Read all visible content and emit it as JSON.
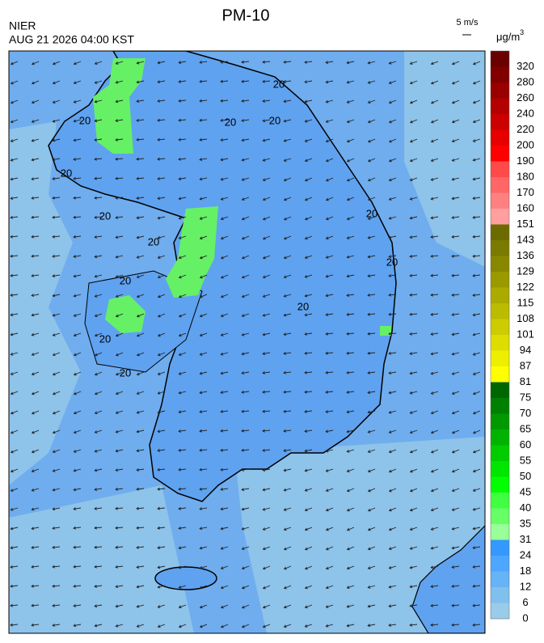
{
  "header": {
    "title": "PM-10",
    "agency": "NIER",
    "timestamp": "AUG 21 2026 04:00 KST"
  },
  "wind_scale": "5 m/s",
  "unit": {
    "base": "μg/m",
    "exponent": "3"
  },
  "colorbar": {
    "labels": [
      320,
      280,
      260,
      240,
      220,
      200,
      190,
      180,
      170,
      160,
      151,
      143,
      136,
      129,
      122,
      115,
      108,
      101,
      94,
      87,
      81,
      75,
      70,
      65,
      60,
      55,
      50,
      45,
      40,
      35,
      31,
      24,
      18,
      12,
      6,
      0
    ],
    "colors": [
      "#6b0000",
      "#800000",
      "#990000",
      "#b30000",
      "#cc0000",
      "#e60000",
      "#ff0000",
      "#ff4a4a",
      "#ff6666",
      "#ff8080",
      "#ff9f9f",
      "#6b6b00",
      "#7a7a00",
      "#888800",
      "#999900",
      "#aaaa00",
      "#bbbb00",
      "#cccc00",
      "#dddd00",
      "#eeee00",
      "#ffff00",
      "#006600",
      "#008000",
      "#009900",
      "#00b300",
      "#00cc00",
      "#00e600",
      "#00ff00",
      "#40ff40",
      "#66ff66",
      "#99ff99",
      "#3399ff",
      "#4da6ff",
      "#66b3f5",
      "#80c0ee",
      "#99ccea"
    ]
  },
  "contour_labels": [
    "20",
    "20",
    "20",
    "20",
    "20",
    "20",
    "20",
    "20",
    "20",
    "20",
    "20",
    "20",
    "20"
  ]
}
